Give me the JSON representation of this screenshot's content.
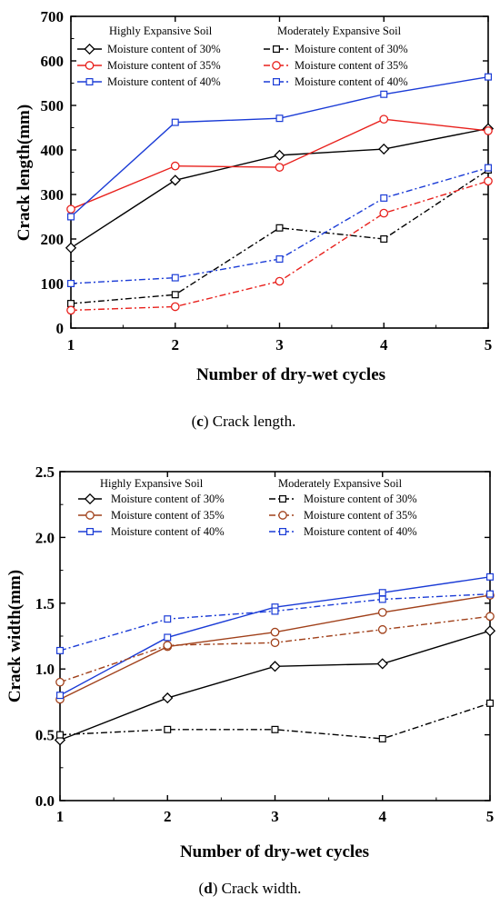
{
  "chart_data": [
    {
      "type": "line",
      "caption_letter": "c",
      "caption_text": "Crack length.",
      "xlabel": "Number of dry-wet cycles",
      "ylabel": "Crack length(mm)",
      "x": [
        1,
        2,
        3,
        4,
        5
      ],
      "xticks": [
        "1",
        "2",
        "3",
        "4",
        "5"
      ],
      "ylim": [
        0,
        700
      ],
      "yticks": [
        "0",
        "100",
        "200",
        "300",
        "400",
        "500",
        "600",
        "700"
      ],
      "legend_groups": [
        "Highly Expansive Soil",
        "Moderately Expansive Soil"
      ],
      "series": [
        {
          "group": 0,
          "name": "Moisture content of 30%",
          "color": "#000000",
          "marker": "diamond",
          "dash": "solid",
          "values": [
            180,
            332,
            388,
            402,
            448
          ]
        },
        {
          "group": 0,
          "name": "Moisture content of 35%",
          "color": "#e8201c",
          "marker": "circle",
          "dash": "solid",
          "values": [
            267,
            364,
            361,
            469,
            443
          ]
        },
        {
          "group": 0,
          "name": "Moisture content of 40%",
          "color": "#1a3bd6",
          "marker": "square",
          "dash": "solid",
          "values": [
            250,
            462,
            471,
            525,
            564
          ]
        },
        {
          "group": 1,
          "name": "Moisture content of 30%",
          "color": "#000000",
          "marker": "square",
          "dash": "dashdot",
          "values": [
            55,
            75,
            225,
            200,
            355
          ]
        },
        {
          "group": 1,
          "name": "Moisture content of 35%",
          "color": "#e8201c",
          "marker": "circle",
          "dash": "dashdot",
          "values": [
            40,
            48,
            105,
            258,
            330
          ]
        },
        {
          "group": 1,
          "name": "Moisture content of 40%",
          "color": "#1a3bd6",
          "marker": "square",
          "dash": "dashdot",
          "values": [
            100,
            113,
            155,
            292,
            360
          ]
        }
      ]
    },
    {
      "type": "line",
      "caption_letter": "d",
      "caption_text": "Crack width.",
      "xlabel": "Number of dry-wet cycles",
      "ylabel": "Crack width(mm)",
      "x": [
        1,
        2,
        3,
        4,
        5
      ],
      "xticks": [
        "1",
        "2",
        "3",
        "4",
        "5"
      ],
      "ylim": [
        0,
        2.5
      ],
      "yticks": [
        "0.0",
        "0.5",
        "1.0",
        "1.5",
        "2.0",
        "2.5"
      ],
      "legend_groups": [
        "Highly Expansive Soil",
        "Moderately Expansive Soil"
      ],
      "series": [
        {
          "group": 0,
          "name": "Moisture content of 30%",
          "color": "#000000",
          "marker": "diamond",
          "dash": "solid",
          "values": [
            0.46,
            0.78,
            1.02,
            1.04,
            1.29
          ]
        },
        {
          "group": 0,
          "name": "Moisture content of 35%",
          "color": "#a0401a",
          "marker": "circle",
          "dash": "solid",
          "values": [
            0.77,
            1.17,
            1.28,
            1.43,
            1.56
          ]
        },
        {
          "group": 0,
          "name": "Moisture content of 40%",
          "color": "#1a3bd6",
          "marker": "square",
          "dash": "solid",
          "values": [
            0.8,
            1.24,
            1.47,
            1.58,
            1.7
          ]
        },
        {
          "group": 1,
          "name": "Moisture content of 30%",
          "color": "#000000",
          "marker": "square",
          "dash": "dashdot",
          "values": [
            0.5,
            0.54,
            0.54,
            0.47,
            0.74
          ]
        },
        {
          "group": 1,
          "name": "Moisture content of 35%",
          "color": "#a0401a",
          "marker": "circle",
          "dash": "dashdot",
          "values": [
            0.9,
            1.18,
            1.2,
            1.3,
            1.4
          ]
        },
        {
          "group": 1,
          "name": "Moisture content of 40%",
          "color": "#1a3bd6",
          "marker": "square",
          "dash": "dashdot",
          "values": [
            1.14,
            1.38,
            1.44,
            1.53,
            1.57
          ]
        }
      ]
    }
  ]
}
